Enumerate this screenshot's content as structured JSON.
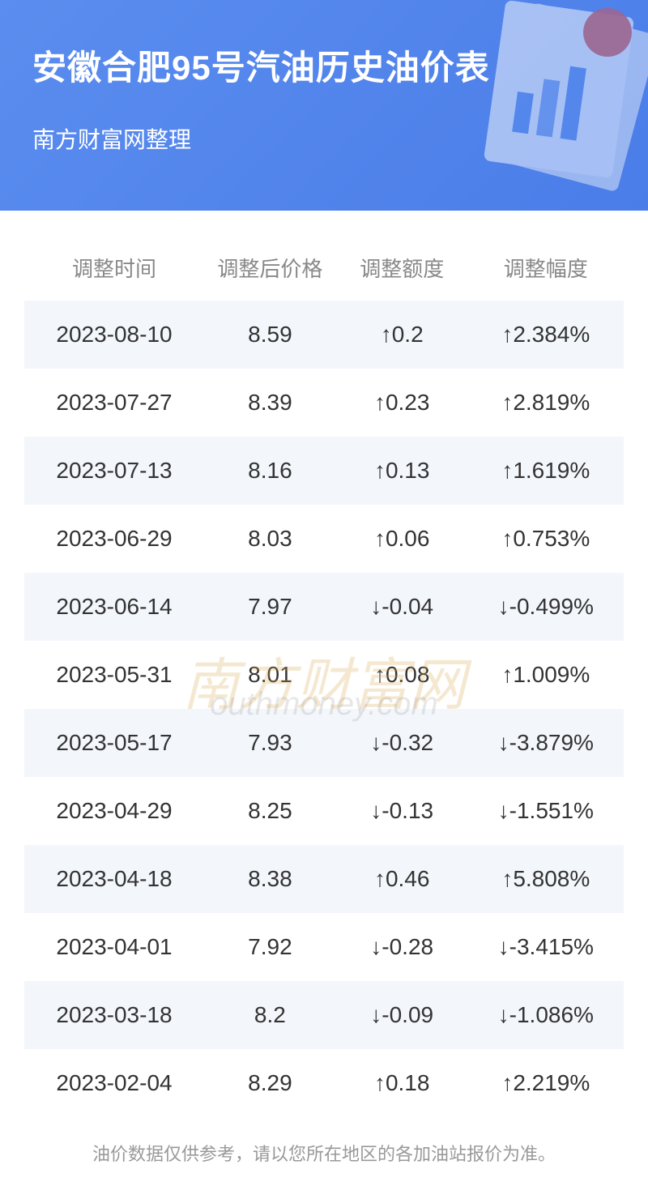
{
  "header": {
    "title": "安徽合肥95号汽油历史油价表",
    "subtitle": "南方财富网整理",
    "bg_gradient_from": "#5b8def",
    "bg_gradient_to": "#4a7de8",
    "title_color": "#ffffff",
    "title_fontsize": 42,
    "subtitle_fontsize": 28
  },
  "table": {
    "columns": [
      "调整时间",
      "调整后价格",
      "调整额度",
      "调整幅度"
    ],
    "header_color": "#888888",
    "header_fontsize": 26,
    "body_fontsize": 28,
    "row_odd_bg": "#f3f6fb",
    "row_even_bg": "#ffffff",
    "text_color": "#333333",
    "up_color": "#e74c3c",
    "down_color": "#17a847",
    "rows": [
      {
        "date": "2023-08-10",
        "price": "8.59",
        "change": "0.2",
        "pct": "2.384%",
        "dir": "up"
      },
      {
        "date": "2023-07-27",
        "price": "8.39",
        "change": "0.23",
        "pct": "2.819%",
        "dir": "up"
      },
      {
        "date": "2023-07-13",
        "price": "8.16",
        "change": "0.13",
        "pct": "1.619%",
        "dir": "up"
      },
      {
        "date": "2023-06-29",
        "price": "8.03",
        "change": "0.06",
        "pct": "0.753%",
        "dir": "up"
      },
      {
        "date": "2023-06-14",
        "price": "7.97",
        "change": "-0.04",
        "pct": "-0.499%",
        "dir": "down"
      },
      {
        "date": "2023-05-31",
        "price": "8.01",
        "change": "0.08",
        "pct": "1.009%",
        "dir": "up"
      },
      {
        "date": "2023-05-17",
        "price": "7.93",
        "change": "-0.32",
        "pct": "-3.879%",
        "dir": "down"
      },
      {
        "date": "2023-04-29",
        "price": "8.25",
        "change": "-0.13",
        "pct": "-1.551%",
        "dir": "down"
      },
      {
        "date": "2023-04-18",
        "price": "8.38",
        "change": "0.46",
        "pct": "5.808%",
        "dir": "up"
      },
      {
        "date": "2023-04-01",
        "price": "7.92",
        "change": "-0.28",
        "pct": "-3.415%",
        "dir": "down"
      },
      {
        "date": "2023-03-18",
        "price": "8.2",
        "change": "-0.09",
        "pct": "-1.086%",
        "dir": "down"
      },
      {
        "date": "2023-02-04",
        "price": "8.29",
        "change": "0.18",
        "pct": "2.219%",
        "dir": "up"
      }
    ]
  },
  "watermark": {
    "main": "南方财富网",
    "sub": "outhmoney.com",
    "main_color": "#d9a84a",
    "sub_color": "#666666"
  },
  "footnote": {
    "text": "油价数据仅供参考，请以您所在地区的各加油站报价为准。",
    "color": "#999999",
    "fontsize": 22
  }
}
